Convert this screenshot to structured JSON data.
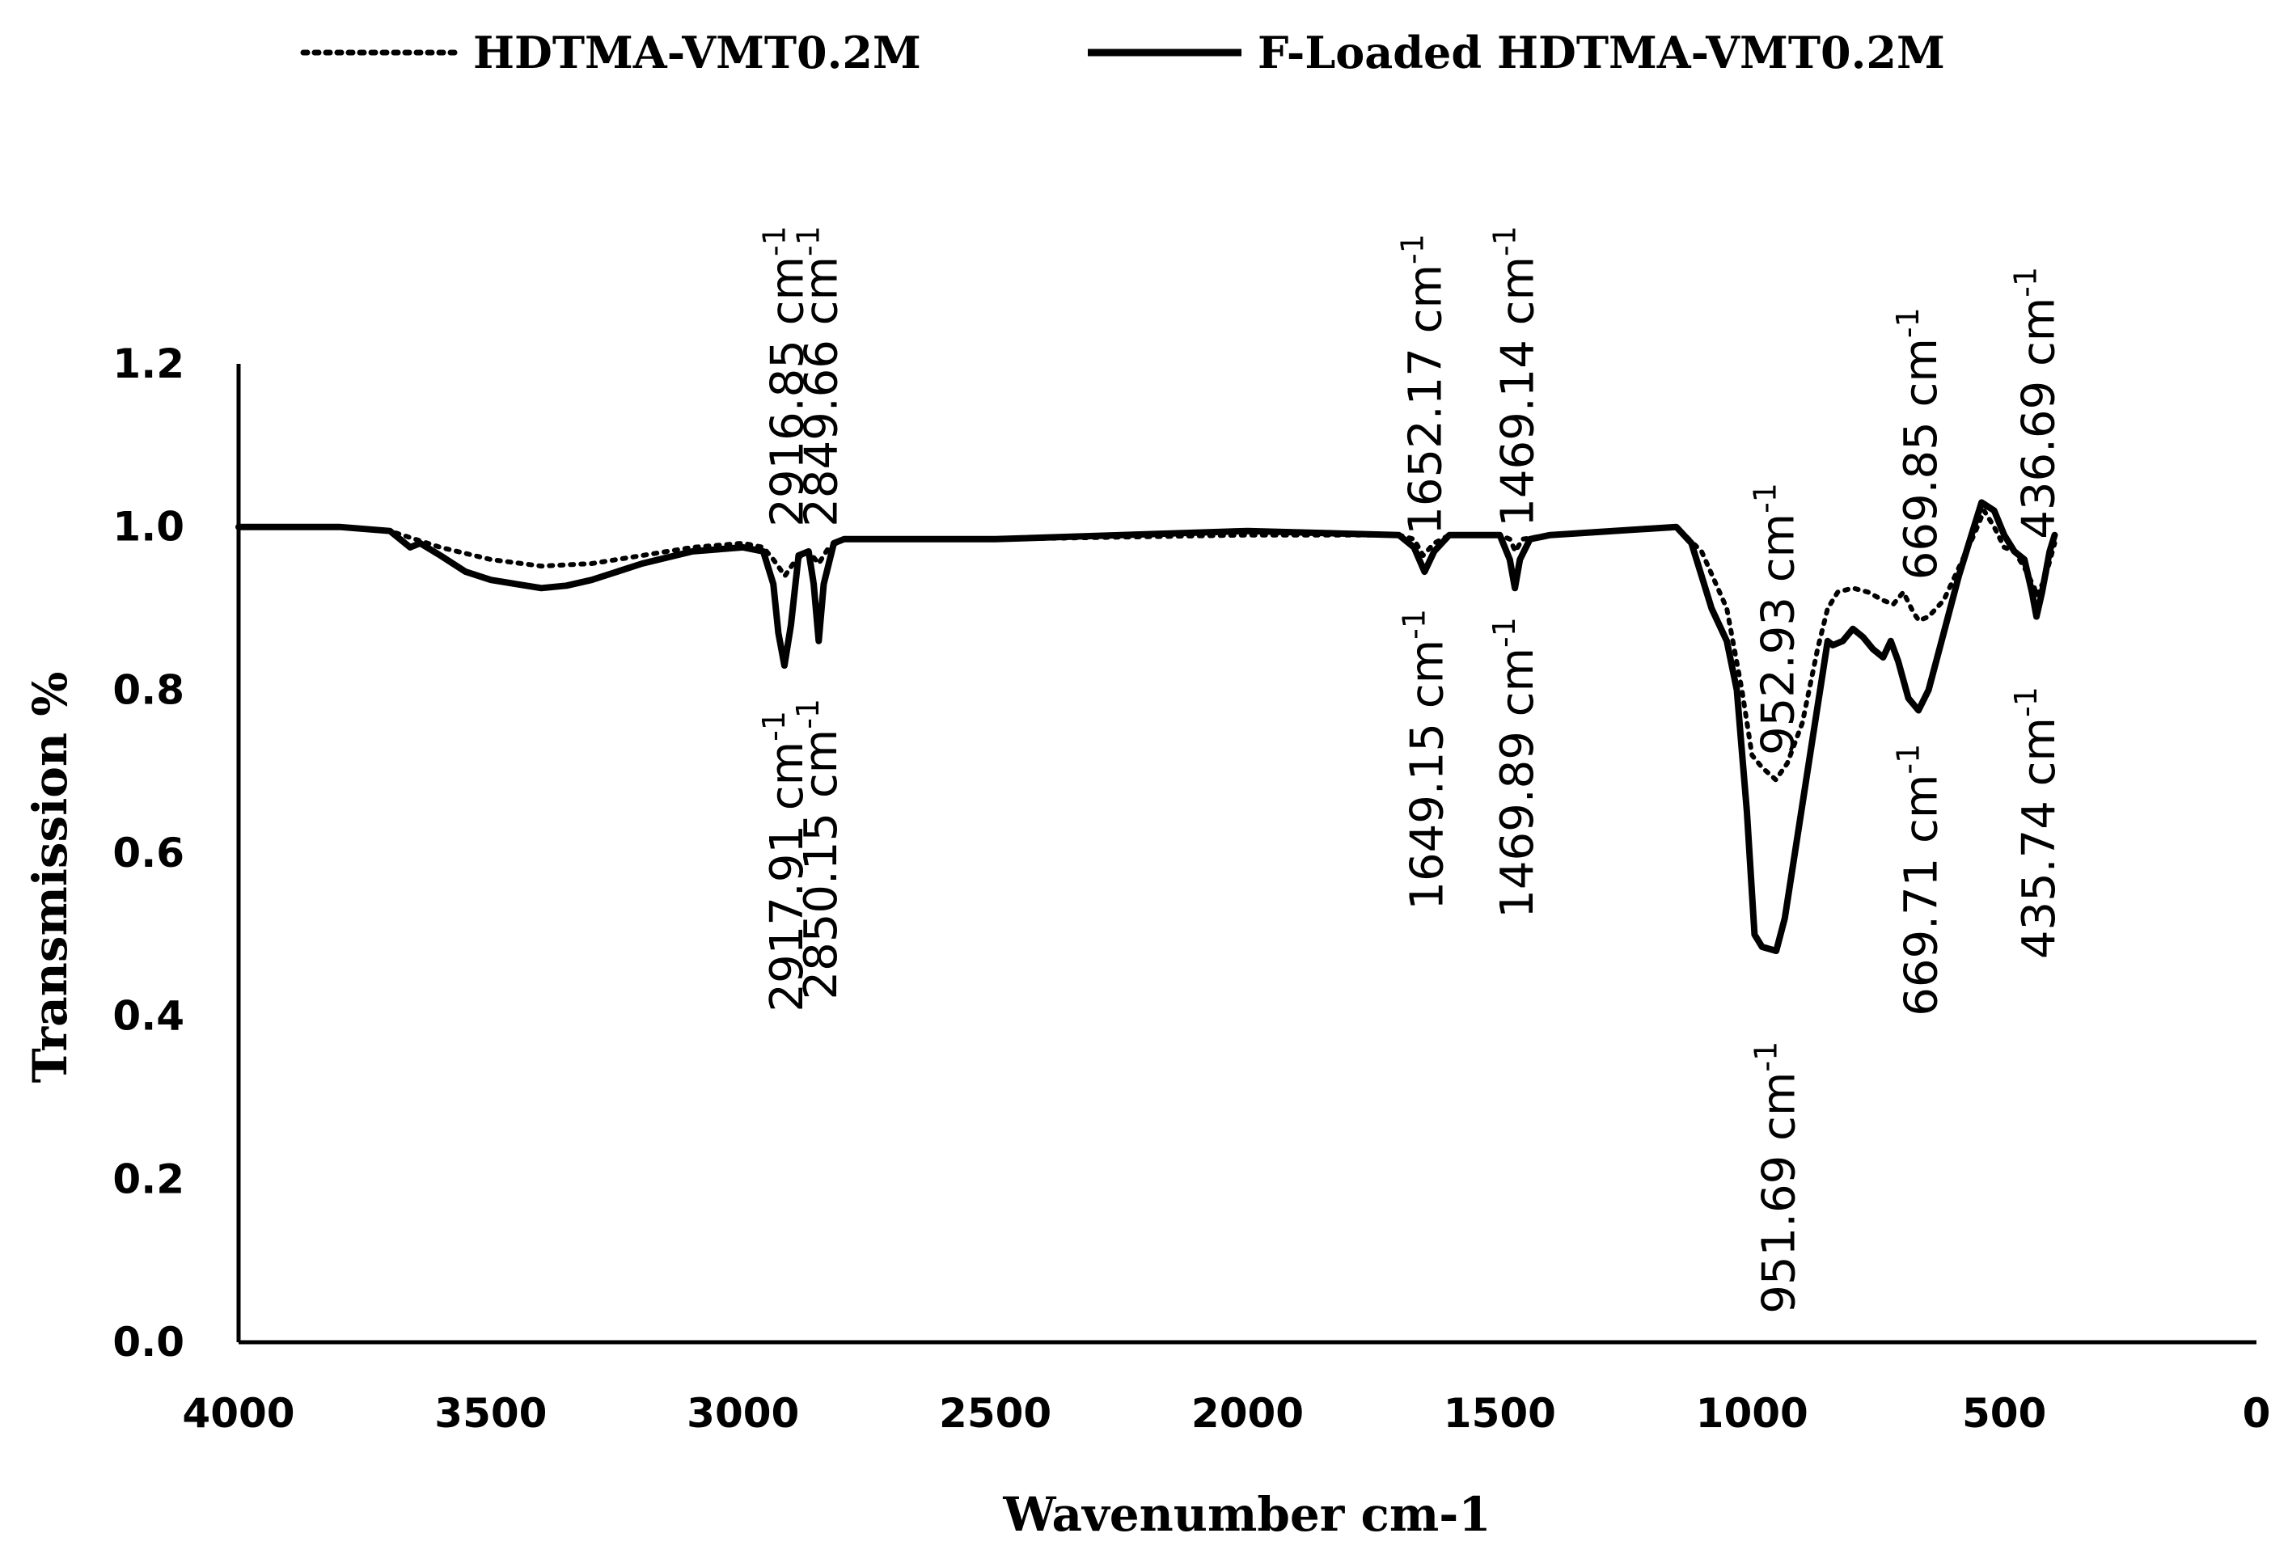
{
  "chart_data": {
    "type": "line",
    "title": "",
    "xlabel": "Wavenumber cm-1",
    "ylabel": "Transmission %",
    "xlim": [
      4000,
      0
    ],
    "ylim": [
      0,
      1.2
    ],
    "xticks": [
      4000,
      3500,
      3000,
      2500,
      2000,
      1500,
      1000,
      500,
      0
    ],
    "yticks": [
      0.0,
      0.2,
      0.4,
      0.6,
      0.8,
      1.0,
      1.2
    ],
    "ytick_labels": [
      "0.0",
      "0.2",
      "0.4",
      "0.6",
      "0.8",
      "1.0",
      "1.2"
    ],
    "grid": false,
    "legend_position": "top",
    "series": [
      {
        "name": "HDTMA-VMT0.2M",
        "style": "dotted",
        "color": "#000000",
        "points": [
          [
            4000,
            1.0
          ],
          [
            3800,
            1.0
          ],
          [
            3700,
            0.995
          ],
          [
            3650,
            0.985
          ],
          [
            3600,
            0.975
          ],
          [
            3500,
            0.96
          ],
          [
            3400,
            0.952
          ],
          [
            3300,
            0.955
          ],
          [
            3200,
            0.965
          ],
          [
            3100,
            0.975
          ],
          [
            3000,
            0.98
          ],
          [
            2960,
            0.975
          ],
          [
            2940,
            0.96
          ],
          [
            2917,
            0.94
          ],
          [
            2895,
            0.96
          ],
          [
            2870,
            0.97
          ],
          [
            2850,
            0.955
          ],
          [
            2830,
            0.975
          ],
          [
            2800,
            0.985
          ],
          [
            2500,
            0.985
          ],
          [
            2000,
            0.99
          ],
          [
            1700,
            0.99
          ],
          [
            1670,
            0.985
          ],
          [
            1652,
            0.965
          ],
          [
            1630,
            0.98
          ],
          [
            1600,
            0.99
          ],
          [
            1500,
            0.99
          ],
          [
            1480,
            0.985
          ],
          [
            1469,
            0.97
          ],
          [
            1455,
            0.985
          ],
          [
            1400,
            0.99
          ],
          [
            1200,
            0.998
          ],
          [
            1150,
            1.0
          ],
          [
            1100,
            0.97
          ],
          [
            1050,
            0.9
          ],
          [
            1020,
            0.8
          ],
          [
            1000,
            0.72
          ],
          [
            980,
            0.705
          ],
          [
            953,
            0.69
          ],
          [
            930,
            0.71
          ],
          [
            900,
            0.76
          ],
          [
            870,
            0.85
          ],
          [
            850,
            0.9
          ],
          [
            830,
            0.92
          ],
          [
            800,
            0.925
          ],
          [
            770,
            0.92
          ],
          [
            740,
            0.91
          ],
          [
            720,
            0.905
          ],
          [
            700,
            0.92
          ],
          [
            680,
            0.895
          ],
          [
            669,
            0.885
          ],
          [
            650,
            0.89
          ],
          [
            620,
            0.91
          ],
          [
            590,
            0.95
          ],
          [
            560,
            0.99
          ],
          [
            540,
            1.02
          ],
          [
            520,
            1.0
          ],
          [
            500,
            0.975
          ],
          [
            480,
            0.97
          ],
          [
            460,
            0.95
          ],
          [
            440,
            0.925
          ],
          [
            437,
            0.915
          ],
          [
            420,
            0.935
          ],
          [
            400,
            0.98
          ]
        ]
      },
      {
        "name": "F-Loaded HDTMA-VMT0.2M",
        "style": "solid",
        "color": "#000000",
        "points": [
          [
            4000,
            1.0
          ],
          [
            3800,
            1.0
          ],
          [
            3700,
            0.995
          ],
          [
            3660,
            0.975
          ],
          [
            3640,
            0.98
          ],
          [
            3600,
            0.965
          ],
          [
            3550,
            0.945
          ],
          [
            3500,
            0.935
          ],
          [
            3450,
            0.93
          ],
          [
            3400,
            0.925
          ],
          [
            3350,
            0.928
          ],
          [
            3300,
            0.935
          ],
          [
            3200,
            0.955
          ],
          [
            3100,
            0.97
          ],
          [
            3000,
            0.975
          ],
          [
            2960,
            0.97
          ],
          [
            2940,
            0.93
          ],
          [
            2930,
            0.87
          ],
          [
            2918,
            0.83
          ],
          [
            2905,
            0.88
          ],
          [
            2890,
            0.965
          ],
          [
            2870,
            0.97
          ],
          [
            2860,
            0.93
          ],
          [
            2850,
            0.86
          ],
          [
            2840,
            0.93
          ],
          [
            2820,
            0.98
          ],
          [
            2800,
            0.985
          ],
          [
            2500,
            0.985
          ],
          [
            2000,
            0.995
          ],
          [
            1700,
            0.99
          ],
          [
            1670,
            0.975
          ],
          [
            1649,
            0.945
          ],
          [
            1630,
            0.97
          ],
          [
            1600,
            0.99
          ],
          [
            1500,
            0.99
          ],
          [
            1480,
            0.96
          ],
          [
            1470,
            0.925
          ],
          [
            1460,
            0.96
          ],
          [
            1440,
            0.985
          ],
          [
            1400,
            0.99
          ],
          [
            1200,
            0.998
          ],
          [
            1150,
            1.0
          ],
          [
            1120,
            0.98
          ],
          [
            1100,
            0.94
          ],
          [
            1080,
            0.9
          ],
          [
            1050,
            0.86
          ],
          [
            1030,
            0.8
          ],
          [
            1010,
            0.65
          ],
          [
            995,
            0.5
          ],
          [
            980,
            0.485
          ],
          [
            952,
            0.48
          ],
          [
            935,
            0.52
          ],
          [
            910,
            0.62
          ],
          [
            880,
            0.74
          ],
          [
            860,
            0.82
          ],
          [
            850,
            0.86
          ],
          [
            840,
            0.855
          ],
          [
            820,
            0.86
          ],
          [
            800,
            0.875
          ],
          [
            780,
            0.865
          ],
          [
            760,
            0.85
          ],
          [
            740,
            0.84
          ],
          [
            725,
            0.86
          ],
          [
            710,
            0.835
          ],
          [
            690,
            0.79
          ],
          [
            670,
            0.775
          ],
          [
            650,
            0.8
          ],
          [
            620,
            0.87
          ],
          [
            590,
            0.94
          ],
          [
            560,
            1.0
          ],
          [
            545,
            1.03
          ],
          [
            520,
            1.02
          ],
          [
            500,
            0.99
          ],
          [
            480,
            0.97
          ],
          [
            460,
            0.96
          ],
          [
            445,
            0.92
          ],
          [
            436,
            0.89
          ],
          [
            425,
            0.92
          ],
          [
            410,
            0.97
          ],
          [
            400,
            0.99
          ]
        ]
      }
    ],
    "annotations": [
      {
        "text": "2916.85 cm",
        "sup": "-1",
        "x": 2916.85,
        "y": 1.0
      },
      {
        "text": "2849.66 cm",
        "sup": "-1",
        "x": 2849.66,
        "y": 1.0
      },
      {
        "text": "2917.91 cm",
        "sup": "-1",
        "x": 2917.91,
        "y": 0.405
      },
      {
        "text": "2850.15 cm",
        "sup": "-1",
        "x": 2850.15,
        "y": 0.42
      },
      {
        "text": "1652.17 cm",
        "sup": "-1",
        "x": 1652.17,
        "y": 0.99
      },
      {
        "text": "1469.14 cm",
        "sup": "-1",
        "x": 1469.14,
        "y": 1.0
      },
      {
        "text": "1649.15 cm",
        "sup": "-1",
        "x": 1649.15,
        "y": 0.53
      },
      {
        "text": "1469.89 cm",
        "sup": "-1",
        "x": 1469.89,
        "y": 0.52
      },
      {
        "text": "952.93 cm",
        "sup": "-1",
        "x": 952.93,
        "y": 0.72
      },
      {
        "text": "669.85 cm",
        "sup": "-1",
        "x": 669.85,
        "y": 0.935
      },
      {
        "text": "436.69 cm",
        "sup": "-1",
        "x": 436.69,
        "y": 0.985
      },
      {
        "text": "951.69 cm",
        "sup": "-1",
        "x": 951.69,
        "y": 0.035
      },
      {
        "text": "669.71 cm",
        "sup": "-1",
        "x": 669.71,
        "y": 0.4
      },
      {
        "text": "435.74 cm",
        "sup": "-1",
        "x": 435.74,
        "y": 0.47
      }
    ]
  }
}
